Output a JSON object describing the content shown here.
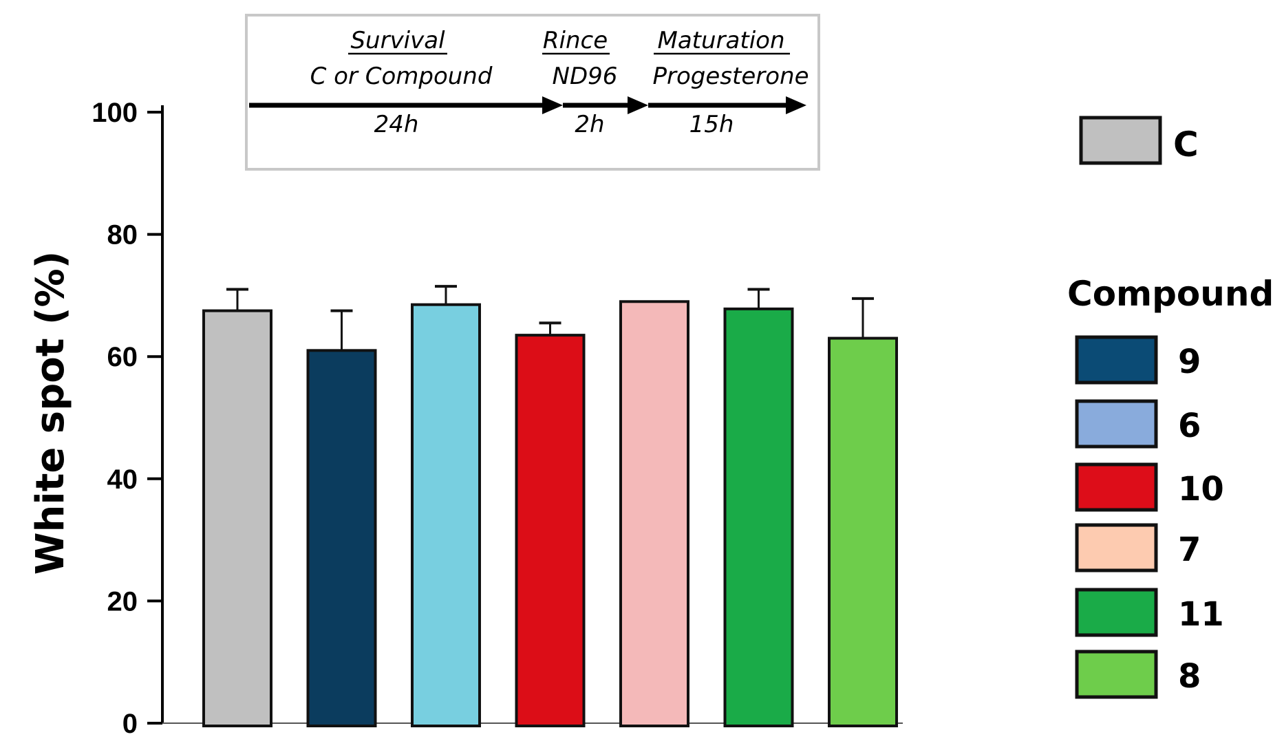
{
  "chart_data": {
    "type": "bar",
    "ylabel": "White spot (%)",
    "xlabel": "",
    "ylim": [
      0,
      100
    ],
    "yticks": [
      0,
      20,
      40,
      60,
      80,
      100
    ],
    "grid": false,
    "legend_position": "right",
    "bars": [
      {
        "group": "C",
        "value": 67.5,
        "error": 3.5,
        "color": "#c0c0c0"
      },
      {
        "group": "9",
        "value": 61.0,
        "error": 6.5,
        "color": "#0b3c5e"
      },
      {
        "group": "6",
        "value": 68.5,
        "error": 3.0,
        "color": "#78cfe0"
      },
      {
        "group": "10",
        "value": 63.5,
        "error": 2.0,
        "color": "#dc0d17"
      },
      {
        "group": "7",
        "value": 69.0,
        "error": 0,
        "color": "#f4b9b9"
      },
      {
        "group": "11",
        "value": 67.8,
        "error": 3.2,
        "color": "#1aab48"
      },
      {
        "group": "8",
        "value": 63.0,
        "error": 6.5,
        "color": "#6ecd4b"
      }
    ],
    "legend": {
      "control": {
        "label": "C",
        "color": "#c0c0c0"
      },
      "group_title": "Compound",
      "items": [
        {
          "label": "9",
          "color": "#0b4b75"
        },
        {
          "label": "6",
          "color": "#89abdc"
        },
        {
          "label": "10",
          "color": "#dd0d19"
        },
        {
          "label": "7",
          "color": "#fdcbb0"
        },
        {
          "label": "11",
          "color": "#1aab48"
        },
        {
          "label": "8",
          "color": "#6ecd4b"
        }
      ]
    },
    "protocol": {
      "steps": [
        {
          "title": "Survival",
          "subtitle": "C or Compound",
          "duration": "24h"
        },
        {
          "title": "Rince",
          "subtitle": "ND96",
          "duration": "2h"
        },
        {
          "title": "Maturation",
          "subtitle": "Progesterone",
          "duration": "15h"
        }
      ]
    }
  }
}
